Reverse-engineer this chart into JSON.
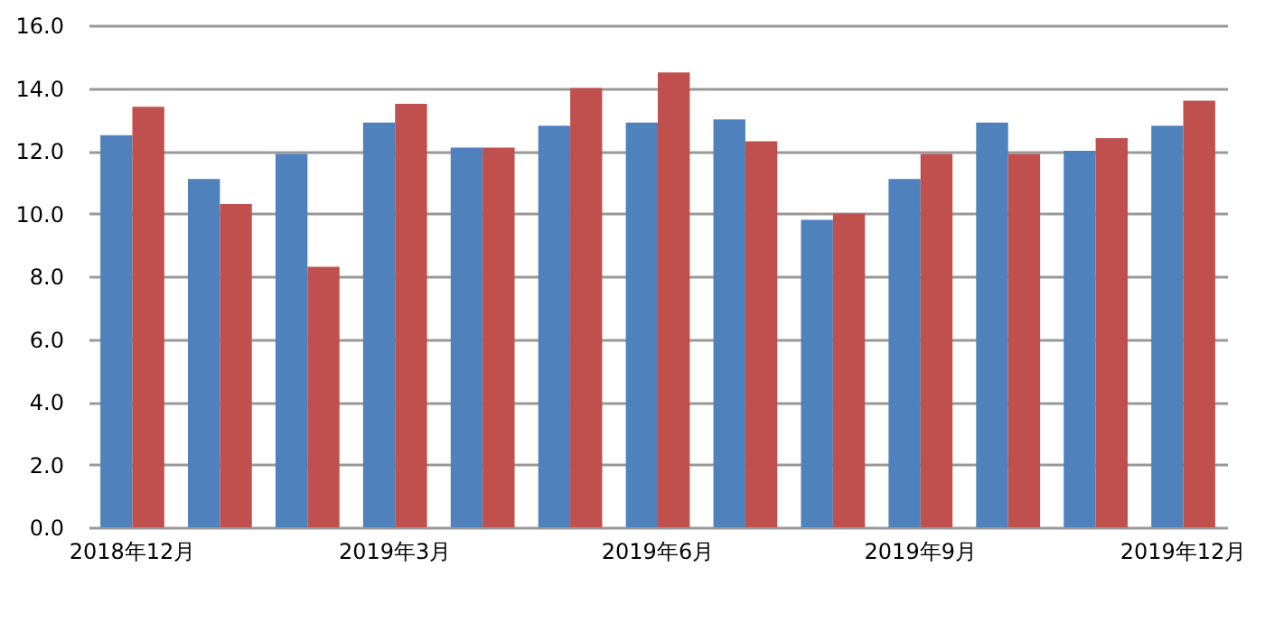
{
  "chart_data": {
    "type": "bar",
    "categories": [
      "2018年12月",
      null,
      null,
      "2019年3月",
      null,
      null,
      "2019年6月",
      null,
      null,
      "2019年9月",
      null,
      null,
      "2019年12月"
    ],
    "series": [
      {
        "color": "#4f81bd",
        "values": [
          12.5,
          11.1,
          11.9,
          12.9,
          12.1,
          12.8,
          12.9,
          13.0,
          9.8,
          11.1,
          12.9,
          12.0,
          12.8
        ]
      },
      {
        "color": "#c0504d",
        "values": [
          13.4,
          10.3,
          8.3,
          13.5,
          12.1,
          14.0,
          14.5,
          12.3,
          10.0,
          11.9,
          11.9,
          12.4,
          13.6
        ]
      }
    ],
    "ylim": [
      0,
      16
    ],
    "yticks": [
      {
        "value": 0,
        "label": "0.0"
      },
      {
        "value": 2,
        "label": "2.0"
      },
      {
        "value": 4,
        "label": "4.0"
      },
      {
        "value": 6,
        "label": "6.0"
      },
      {
        "value": 8,
        "label": "8.0"
      },
      {
        "value": 10,
        "label": "10.0"
      },
      {
        "value": 12,
        "label": "12.0"
      },
      {
        "value": 14,
        "label": "14.0"
      },
      {
        "value": 16,
        "label": "16.0"
      }
    ],
    "grid": "y",
    "legend": false
  }
}
